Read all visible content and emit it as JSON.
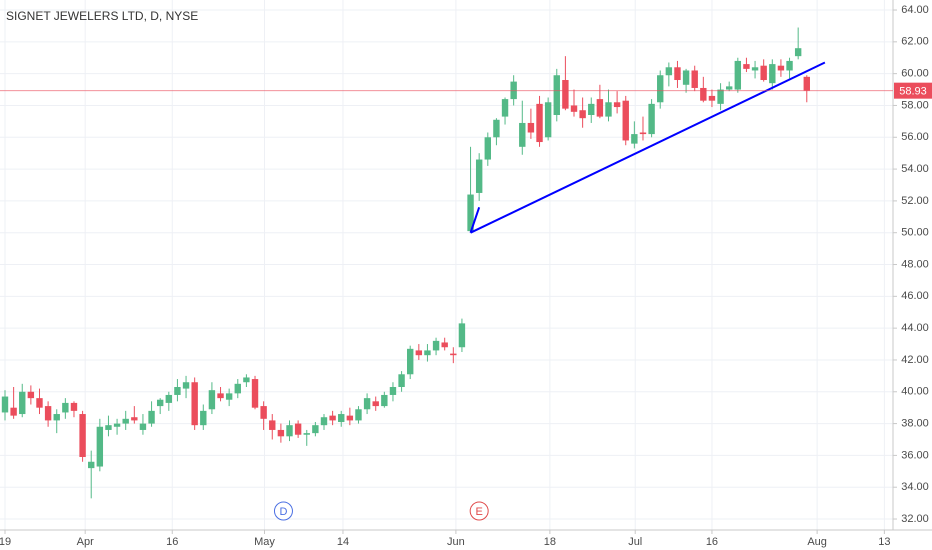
{
  "chart_data": {
    "type": "candlestick",
    "title": "SIGNET JEWELERS LTD, D, NYSE",
    "x": [
      0,
      1,
      2,
      3,
      4,
      5,
      6,
      7,
      8,
      9,
      10,
      11,
      12,
      13,
      14,
      15,
      16,
      17,
      18,
      19,
      20,
      21,
      22,
      23,
      24,
      25,
      26,
      27,
      28,
      29,
      30,
      31,
      32,
      33,
      34,
      35,
      36,
      37,
      38,
      39,
      40,
      41,
      42,
      43,
      44,
      45,
      46,
      47,
      48,
      49,
      50,
      51,
      52,
      53,
      54,
      55,
      56,
      57,
      58,
      59,
      60,
      61,
      62,
      63,
      64,
      65,
      66,
      67,
      68,
      69,
      70,
      71,
      72,
      73,
      74,
      75,
      76,
      77,
      78,
      79,
      80,
      81,
      82,
      83,
      84,
      85,
      86,
      87,
      88,
      89,
      90,
      91,
      92,
      93
    ],
    "ohlc": [
      [
        38.7,
        40.1,
        38.2,
        39.7
      ],
      [
        39.0,
        40.3,
        38.3,
        38.5
      ],
      [
        38.6,
        40.5,
        38.4,
        40.0
      ],
      [
        40.0,
        40.4,
        39.2,
        39.6
      ],
      [
        39.6,
        40.2,
        38.6,
        39.0
      ],
      [
        39.1,
        39.4,
        37.8,
        38.2
      ],
      [
        38.2,
        38.9,
        37.4,
        38.6
      ],
      [
        38.7,
        39.6,
        38.3,
        39.3
      ],
      [
        39.3,
        39.4,
        38.4,
        38.8
      ],
      [
        38.6,
        38.8,
        35.6,
        35.9
      ],
      [
        35.2,
        36.3,
        33.3,
        35.6
      ],
      [
        35.3,
        38.3,
        35.0,
        37.8
      ],
      [
        37.6,
        38.5,
        37.2,
        37.9
      ],
      [
        37.8,
        38.3,
        37.3,
        38.0
      ],
      [
        38.0,
        38.8,
        37.6,
        38.3
      ],
      [
        38.4,
        39.1,
        38.0,
        38.2
      ],
      [
        37.6,
        38.6,
        37.3,
        38.0
      ],
      [
        38.0,
        39.4,
        37.8,
        38.8
      ],
      [
        39.1,
        39.6,
        38.6,
        39.5
      ],
      [
        39.3,
        40.0,
        38.8,
        39.8
      ],
      [
        39.8,
        40.8,
        39.4,
        40.3
      ],
      [
        40.2,
        41.0,
        39.6,
        40.6
      ],
      [
        40.6,
        40.9,
        37.6,
        37.9
      ],
      [
        37.9,
        39.2,
        37.6,
        38.8
      ],
      [
        38.9,
        40.6,
        38.6,
        40.1
      ],
      [
        39.9,
        40.3,
        39.4,
        39.6
      ],
      [
        39.5,
        40.2,
        39.1,
        39.9
      ],
      [
        39.9,
        40.8,
        39.6,
        40.5
      ],
      [
        40.6,
        41.1,
        40.3,
        40.9
      ],
      [
        40.8,
        41.0,
        38.9,
        39.0
      ],
      [
        39.1,
        39.4,
        37.6,
        38.3
      ],
      [
        38.2,
        38.6,
        37.0,
        37.6
      ],
      [
        37.6,
        38.0,
        36.8,
        37.2
      ],
      [
        37.2,
        38.2,
        36.9,
        37.9
      ],
      [
        38.0,
        38.2,
        37.1,
        37.3
      ],
      [
        37.3,
        37.6,
        36.6,
        37.4
      ],
      [
        37.4,
        38.1,
        37.2,
        37.9
      ],
      [
        37.9,
        38.6,
        37.6,
        38.4
      ],
      [
        38.5,
        38.8,
        37.9,
        38.2
      ],
      [
        38.1,
        38.8,
        37.8,
        38.6
      ],
      [
        38.5,
        39.0,
        37.9,
        38.2
      ],
      [
        38.2,
        39.1,
        38.0,
        38.9
      ],
      [
        38.9,
        39.9,
        38.6,
        39.6
      ],
      [
        39.4,
        39.7,
        38.8,
        39.1
      ],
      [
        39.1,
        40.0,
        39.0,
        39.8
      ],
      [
        39.8,
        40.6,
        39.4,
        40.3
      ],
      [
        40.3,
        41.3,
        40.0,
        41.1
      ],
      [
        41.1,
        42.9,
        40.8,
        42.7
      ],
      [
        42.6,
        43.0,
        42.0,
        42.3
      ],
      [
        42.3,
        43.0,
        41.9,
        42.6
      ],
      [
        42.6,
        43.4,
        42.3,
        43.2
      ],
      [
        43.1,
        43.4,
        42.6,
        42.8
      ],
      [
        42.4,
        42.8,
        41.8,
        42.3
      ],
      [
        42.8,
        44.6,
        42.5,
        44.3
      ],
      [
        50.1,
        55.4,
        50.0,
        52.4
      ],
      [
        52.5,
        55.0,
        52.0,
        54.6
      ],
      [
        54.6,
        56.3,
        54.2,
        56.0
      ],
      [
        56.0,
        57.2,
        55.5,
        57.1
      ],
      [
        57.3,
        58.5,
        56.8,
        58.4
      ],
      [
        58.4,
        59.9,
        58.0,
        59.5
      ],
      [
        55.4,
        58.3,
        54.9,
        56.9
      ],
      [
        56.9,
        57.8,
        55.9,
        56.3
      ],
      [
        58.1,
        58.6,
        55.4,
        55.7
      ],
      [
        56.0,
        58.5,
        55.8,
        58.2
      ],
      [
        57.4,
        60.3,
        57.0,
        59.9
      ],
      [
        59.6,
        61.1,
        57.7,
        57.8
      ],
      [
        58.0,
        59.0,
        57.3,
        57.6
      ],
      [
        57.7,
        58.5,
        56.6,
        57.2
      ],
      [
        57.4,
        58.5,
        56.9,
        58.1
      ],
      [
        58.4,
        59.3,
        57.2,
        57.3
      ],
      [
        57.3,
        59.0,
        57.0,
        58.2
      ],
      [
        58.2,
        58.9,
        57.5,
        57.9
      ],
      [
        58.3,
        58.6,
        55.5,
        55.8
      ],
      [
        55.6,
        57.0,
        55.3,
        56.2
      ],
      [
        56.3,
        57.3,
        55.8,
        56.2
      ],
      [
        56.2,
        58.4,
        56.0,
        58.1
      ],
      [
        58.2,
        60.2,
        57.8,
        59.9
      ],
      [
        59.9,
        60.7,
        59.2,
        60.4
      ],
      [
        60.4,
        60.8,
        59.1,
        59.6
      ],
      [
        59.3,
        60.3,
        58.8,
        60.2
      ],
      [
        60.2,
        60.5,
        58.9,
        59.1
      ],
      [
        59.1,
        59.8,
        58.2,
        58.3
      ],
      [
        58.6,
        59.0,
        57.9,
        58.3
      ],
      [
        58.1,
        59.4,
        57.7,
        59.0
      ],
      [
        59.0,
        59.5,
        58.9,
        59.2
      ],
      [
        59.0,
        61.0,
        58.8,
        60.8
      ],
      [
        60.6,
        61.0,
        60.1,
        60.3
      ],
      [
        60.2,
        60.8,
        59.7,
        60.4
      ],
      [
        60.5,
        60.9,
        59.5,
        59.6
      ],
      [
        59.4,
        60.9,
        59.0,
        60.6
      ],
      [
        60.5,
        60.9,
        59.8,
        60.2
      ],
      [
        60.2,
        61.0,
        59.7,
        60.8
      ],
      [
        61.1,
        62.9,
        60.9,
        61.6
      ],
      [
        59.8,
        59.9,
        58.2,
        58.93
      ]
    ],
    "up_color": "#53b987",
    "down_color": "#eb4d5c",
    "xlim": [
      -0.58,
      103.0
    ],
    "xticks": [
      {
        "value": 0,
        "label": "19"
      },
      {
        "value": 9.3,
        "label": "Apr"
      },
      {
        "value": 19.4,
        "label": "16"
      },
      {
        "value": 30.1,
        "label": "May"
      },
      {
        "value": 39.2,
        "label": "14"
      },
      {
        "value": 52.3,
        "label": "Jun"
      },
      {
        "value": 63.2,
        "label": "18"
      },
      {
        "value": 73.1,
        "label": "Jul"
      },
      {
        "value": 82.0,
        "label": "16"
      },
      {
        "value": 94.2,
        "label": "Aug"
      },
      {
        "value": 102.0,
        "label": "13"
      }
    ],
    "ylim": [
      31.31,
      64.63
    ],
    "yticks": [
      {
        "value": 32,
        "label": "32.00"
      },
      {
        "value": 34,
        "label": "34.00"
      },
      {
        "value": 36,
        "label": "36.00"
      },
      {
        "value": 38,
        "label": "38.00"
      },
      {
        "value": 40,
        "label": "40.00"
      },
      {
        "value": 42,
        "label": "42.00"
      },
      {
        "value": 44,
        "label": "44.00"
      },
      {
        "value": 46,
        "label": "46.00"
      },
      {
        "value": 48,
        "label": "48.00"
      },
      {
        "value": 50,
        "label": "50.00"
      },
      {
        "value": 52,
        "label": "52.00"
      },
      {
        "value": 54,
        "label": "54.00"
      },
      {
        "value": 56,
        "label": "56.00"
      },
      {
        "value": 58,
        "label": "58.00"
      },
      {
        "value": 60,
        "label": "60.00"
      },
      {
        "value": 62,
        "label": "62.00"
      },
      {
        "value": 64,
        "label": "64.00"
      }
    ],
    "grid": true,
    "last_price": 58.93,
    "last_price_color": "#eb4d5c",
    "drawings": [
      {
        "x": [
          54,
          55
        ],
        "y": [
          50.0,
          51.6
        ],
        "color": "#0000ff"
      },
      {
        "x": [
          54,
          95.1
        ],
        "y": [
          50.0,
          60.7
        ],
        "color": "#0000ff"
      }
    ],
    "events": [
      {
        "label": "D",
        "x": 32.3,
        "color": "#4a6fe3"
      },
      {
        "label": "E",
        "x": 55.0,
        "color": "#e04a4a"
      }
    ]
  }
}
